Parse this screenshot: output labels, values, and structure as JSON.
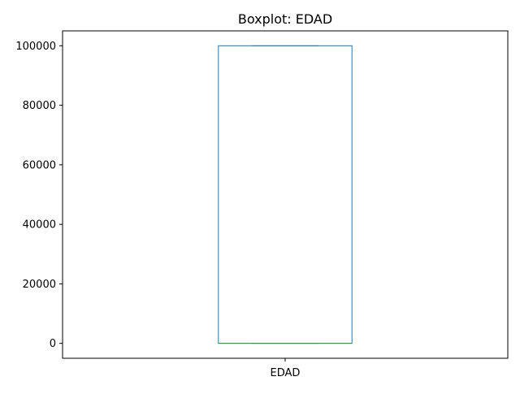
{
  "chart_data": {
    "type": "boxplot",
    "title": "Boxplot: EDAD",
    "xlabel": "",
    "ylabel": "",
    "categories": [
      "EDAD"
    ],
    "boxes": [
      {
        "category": "EDAD",
        "whisker_low": 0,
        "q1": 0,
        "median": 35,
        "q3": 99999,
        "whisker_high": 99999
      }
    ],
    "yticks": [
      0,
      20000,
      40000,
      60000,
      80000,
      100000
    ],
    "ytick_labels": [
      "0",
      "20000",
      "40000",
      "60000",
      "80000",
      "100000"
    ],
    "ylim": [
      -5000,
      105000
    ],
    "grid": false,
    "colors": {
      "box": "#1f77b4",
      "median": "#2ca02c",
      "axes": "#000000"
    }
  }
}
